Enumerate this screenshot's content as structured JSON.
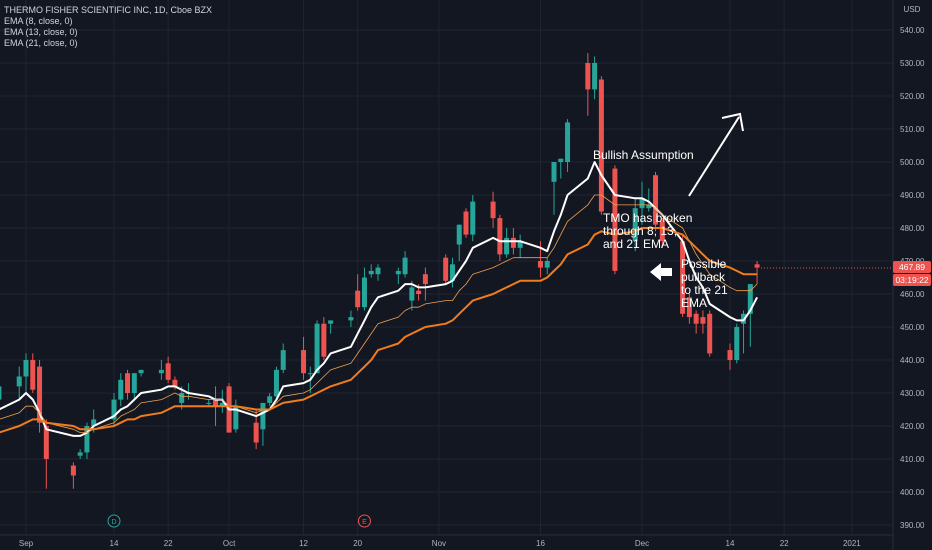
{
  "colors": {
    "background": "#131722",
    "grid": "#1f2433",
    "up_candle": "#26a69a",
    "down_candle": "#ef5350",
    "ema8": "#ffffff",
    "ema13": "#f5a04a",
    "ema21": "#f07c1d",
    "annotation": "#ffffff",
    "axis_text": "#b2b5be",
    "price_badge": "#ef5350"
  },
  "legend": {
    "title": "THERMO FISHER SCIENTIFIC INC, 1D, Cboe BZX",
    "ema8": "EMA (8, close, 0)",
    "ema13": "EMA (13, close, 0)",
    "ema21": "EMA (21, close, 0)"
  },
  "axis": {
    "currency": "USD",
    "last_price": "467.89",
    "countdown": "03:19:22",
    "event_markers": [
      {
        "letter": "D",
        "color": "#26a69a",
        "date": "2020-09-14"
      },
      {
        "letter": "E",
        "color": "#ef5350",
        "date": "2020-10-21"
      }
    ]
  },
  "annotations": {
    "bullish": "Bullish Assumption",
    "broken_1": "TMO has broken",
    "broken_2": "through 8, 13,",
    "broken_3": "and 21 EMA",
    "pullback_1": "Possible",
    "pullback_2": "pullback",
    "pullback_3": "to the 21",
    "pullback_4": "EMA"
  },
  "chart_data": {
    "type": "candlestick",
    "title": "THERMO FISHER SCIENTIFIC INC, 1D, Cboe BZX",
    "ylim": [
      388,
      545
    ],
    "y_ticks": [
      390,
      400,
      410,
      420,
      430,
      440,
      450,
      460,
      470,
      480,
      490,
      500,
      510,
      520,
      530,
      540
    ],
    "x_tick_labels": [
      "Sep",
      "14",
      "22",
      "Oct",
      "12",
      "20",
      "Nov",
      "16",
      "Dec",
      "14",
      "22",
      "2021"
    ],
    "grid": true,
    "candles": [
      {
        "date": "2020-08-27",
        "o": 425,
        "h": 430,
        "l": 418,
        "c": 428
      },
      {
        "date": "2020-08-28",
        "o": 428,
        "h": 435,
        "l": 424,
        "c": 432
      },
      {
        "date": "2020-08-31",
        "o": 432,
        "h": 438,
        "l": 428,
        "c": 435
      },
      {
        "date": "2020-09-01",
        "o": 435,
        "h": 442,
        "l": 430,
        "c": 440
      },
      {
        "date": "2020-09-02",
        "o": 440,
        "h": 442,
        "l": 430,
        "c": 431
      },
      {
        "date": "2020-09-03",
        "o": 438,
        "h": 440,
        "l": 418,
        "c": 421
      },
      {
        "date": "2020-09-04",
        "o": 420,
        "h": 422,
        "l": 401,
        "c": 410
      },
      {
        "date": "2020-09-08",
        "o": 408,
        "h": 409,
        "l": 401,
        "c": 405
      },
      {
        "date": "2020-09-09",
        "o": 411,
        "h": 413,
        "l": 410,
        "c": 412
      },
      {
        "date": "2020-09-10",
        "o": 412,
        "h": 421,
        "l": 410,
        "c": 420
      },
      {
        "date": "2020-09-11",
        "o": 420,
        "h": 425,
        "l": 418,
        "c": 422
      },
      {
        "date": "2020-09-14",
        "o": 422,
        "h": 430,
        "l": 420,
        "c": 428
      },
      {
        "date": "2020-09-15",
        "o": 428,
        "h": 436,
        "l": 426,
        "c": 434
      },
      {
        "date": "2020-09-16",
        "o": 436,
        "h": 437,
        "l": 428,
        "c": 430
      },
      {
        "date": "2020-09-17",
        "o": 430,
        "h": 436,
        "l": 428,
        "c": 436
      },
      {
        "date": "2020-09-18",
        "o": 436,
        "h": 437,
        "l": 435,
        "c": 437
      },
      {
        "date": "2020-09-21",
        "o": 436,
        "h": 440,
        "l": 434,
        "c": 437
      },
      {
        "date": "2020-09-22",
        "o": 439,
        "h": 441,
        "l": 433,
        "c": 434
      },
      {
        "date": "2020-09-23",
        "o": 434,
        "h": 435,
        "l": 431,
        "c": 432
      },
      {
        "date": "2020-09-24",
        "o": 427,
        "h": 432,
        "l": 425,
        "c": 430
      },
      {
        "date": "2020-09-25",
        "o": 430,
        "h": 433,
        "l": 428,
        "c": 430
      },
      {
        "date": "2020-09-28",
        "o": 427,
        "h": 428,
        "l": 426,
        "c": 427
      },
      {
        "date": "2020-09-29",
        "o": 428,
        "h": 432,
        "l": 420,
        "c": 426
      },
      {
        "date": "2020-09-30",
        "o": 426,
        "h": 431,
        "l": 424,
        "c": 427
      },
      {
        "date": "2020-10-01",
        "o": 432,
        "h": 433,
        "l": 418,
        "c": 418
      },
      {
        "date": "2020-10-02",
        "o": 419,
        "h": 428,
        "l": 418,
        "c": 426
      },
      {
        "date": "2020-10-05",
        "o": 421,
        "h": 425,
        "l": 413,
        "c": 415
      },
      {
        "date": "2020-10-06",
        "o": 419,
        "h": 427,
        "l": 414,
        "c": 427
      },
      {
        "date": "2020-10-07",
        "o": 427,
        "h": 430,
        "l": 426,
        "c": 429
      },
      {
        "date": "2020-10-08",
        "o": 429,
        "h": 438,
        "l": 428,
        "c": 437
      },
      {
        "date": "2020-10-09",
        "o": 437,
        "h": 445,
        "l": 436,
        "c": 443
      },
      {
        "date": "2020-10-12",
        "o": 443,
        "h": 447,
        "l": 434,
        "c": 436
      },
      {
        "date": "2020-10-13",
        "o": 436,
        "h": 438,
        "l": 430,
        "c": 436
      },
      {
        "date": "2020-10-14",
        "o": 436,
        "h": 452,
        "l": 436,
        "c": 451
      },
      {
        "date": "2020-10-15",
        "o": 451,
        "h": 453,
        "l": 440,
        "c": 441
      },
      {
        "date": "2020-10-16",
        "o": 451,
        "h": 452,
        "l": 448,
        "c": 452
      },
      {
        "date": "2020-10-19",
        "o": 452,
        "h": 455,
        "l": 450,
        "c": 453
      },
      {
        "date": "2020-10-20",
        "o": 461,
        "h": 466,
        "l": 455,
        "c": 456
      },
      {
        "date": "2020-10-21",
        "o": 456,
        "h": 468,
        "l": 455,
        "c": 465
      },
      {
        "date": "2020-10-22",
        "o": 466,
        "h": 469,
        "l": 465,
        "c": 467
      },
      {
        "date": "2020-10-23",
        "o": 466,
        "h": 469,
        "l": 464,
        "c": 468
      },
      {
        "date": "2020-10-26",
        "o": 466,
        "h": 468,
        "l": 463,
        "c": 467
      },
      {
        "date": "2020-10-27",
        "o": 466,
        "h": 473,
        "l": 465,
        "c": 471
      },
      {
        "date": "2020-10-28",
        "o": 458,
        "h": 464,
        "l": 455,
        "c": 462
      },
      {
        "date": "2020-10-29",
        "o": 461,
        "h": 463,
        "l": 458,
        "c": 460
      },
      {
        "date": "2020-10-30",
        "o": 466,
        "h": 468,
        "l": 458,
        "c": 463
      },
      {
        "date": "2020-11-02",
        "o": 471,
        "h": 472,
        "l": 463,
        "c": 464
      },
      {
        "date": "2020-11-03",
        "o": 464,
        "h": 471,
        "l": 462,
        "c": 469
      },
      {
        "date": "2020-11-04",
        "o": 475,
        "h": 481,
        "l": 470,
        "c": 481
      },
      {
        "date": "2020-11-05",
        "o": 485,
        "h": 486,
        "l": 477,
        "c": 478
      },
      {
        "date": "2020-11-06",
        "o": 478,
        "h": 490,
        "l": 476,
        "c": 488
      },
      {
        "date": "2020-11-09",
        "o": 488,
        "h": 491,
        "l": 480,
        "c": 483
      },
      {
        "date": "2020-11-10",
        "o": 483,
        "h": 484,
        "l": 470,
        "c": 472
      },
      {
        "date": "2020-11-11",
        "o": 472,
        "h": 480,
        "l": 471,
        "c": 477
      },
      {
        "date": "2020-11-12",
        "o": 477,
        "h": 480,
        "l": 472,
        "c": 474
      },
      {
        "date": "2020-11-13",
        "o": 474,
        "h": 478,
        "l": 471,
        "c": 476
      },
      {
        "date": "2020-11-16",
        "o": 470,
        "h": 476,
        "l": 465,
        "c": 468
      },
      {
        "date": "2020-11-17",
        "o": 468,
        "h": 471,
        "l": 466,
        "c": 470
      },
      {
        "date": "2020-11-18",
        "o": 494,
        "h": 500,
        "l": 484,
        "c": 500
      },
      {
        "date": "2020-11-19",
        "o": 500,
        "h": 501,
        "l": 495,
        "c": 501
      },
      {
        "date": "2020-11-20",
        "o": 500,
        "h": 513,
        "l": 497,
        "c": 512
      },
      {
        "date": "2020-11-23",
        "o": 530,
        "h": 533,
        "l": 514,
        "c": 522
      },
      {
        "date": "2020-11-24",
        "o": 522,
        "h": 532,
        "l": 519,
        "c": 530
      },
      {
        "date": "2020-11-25",
        "o": 525,
        "h": 526,
        "l": 484,
        "c": 485
      },
      {
        "date": "2020-11-27",
        "o": 498,
        "h": 499,
        "l": 466,
        "c": 467
      },
      {
        "date": "2020-11-30",
        "o": 476,
        "h": 489,
        "l": 473,
        "c": 486
      },
      {
        "date": "2020-12-01",
        "o": 486,
        "h": 494,
        "l": 481,
        "c": 489
      },
      {
        "date": "2020-12-02",
        "o": 486,
        "h": 492,
        "l": 485,
        "c": 487
      },
      {
        "date": "2020-12-03",
        "o": 496,
        "h": 497,
        "l": 479,
        "c": 481
      },
      {
        "date": "2020-12-04",
        "o": 482,
        "h": 483,
        "l": 474,
        "c": 476
      },
      {
        "date": "2020-12-07",
        "o": 476,
        "h": 478,
        "l": 453,
        "c": 454
      },
      {
        "date": "2020-12-08",
        "o": 459,
        "h": 460,
        "l": 451,
        "c": 453
      },
      {
        "date": "2020-12-09",
        "o": 454,
        "h": 455,
        "l": 448,
        "c": 451
      },
      {
        "date": "2020-12-10",
        "o": 453,
        "h": 455,
        "l": 448,
        "c": 451
      },
      {
        "date": "2020-12-11",
        "o": 454,
        "h": 455,
        "l": 441,
        "c": 442
      },
      {
        "date": "2020-12-14",
        "o": 443,
        "h": 445,
        "l": 437,
        "c": 440
      },
      {
        "date": "2020-12-15",
        "o": 440,
        "h": 451,
        "l": 439,
        "c": 450
      },
      {
        "date": "2020-12-16",
        "o": 451,
        "h": 455,
        "l": 442,
        "c": 454
      },
      {
        "date": "2020-12-17",
        "o": 454,
        "h": 463,
        "l": 444,
        "c": 463
      },
      {
        "date": "2020-12-18",
        "o": 469,
        "h": 470,
        "l": 463,
        "c": 468
      }
    ],
    "series": [
      {
        "name": "EMA (8, close, 0)",
        "values": [
          421,
          425,
          428,
          430,
          428,
          424,
          419,
          417,
          417,
          418,
          420,
          423,
          425,
          426,
          428,
          430,
          431,
          432,
          432,
          431,
          430,
          429,
          428,
          428,
          425,
          425,
          423,
          424,
          425,
          428,
          432,
          433,
          434,
          437,
          439,
          442,
          444,
          448,
          452,
          456,
          459,
          461,
          463,
          463,
          462,
          462,
          463,
          464,
          467,
          470,
          474,
          477,
          476,
          476,
          476,
          476,
          474,
          473,
          479,
          484,
          490,
          495,
          500,
          496,
          490,
          489,
          489,
          488,
          486,
          484,
          476,
          470,
          465,
          462,
          457,
          453,
          452,
          452,
          455,
          459
        ]
      },
      {
        "name": "EMA (13, close, 0)",
        "values": [
          419,
          422,
          424,
          426,
          426,
          424,
          421,
          419,
          418,
          418,
          419,
          421,
          423,
          424,
          425,
          427,
          428,
          429,
          430,
          429,
          429,
          428,
          428,
          428,
          426,
          426,
          424,
          425,
          425,
          427,
          429,
          430,
          431,
          433,
          435,
          437,
          439,
          442,
          445,
          448,
          451,
          453,
          455,
          456,
          456,
          457,
          458,
          458,
          461,
          463,
          466,
          468,
          469,
          470,
          471,
          471,
          471,
          471,
          474,
          478,
          482,
          487,
          490,
          490,
          487,
          487,
          487,
          487,
          486,
          484,
          480,
          476,
          472,
          469,
          466,
          462,
          461,
          461,
          461,
          463
        ]
      },
      {
        "name": "EMA (21, close, 0)",
        "values": [
          417,
          418,
          420,
          421,
          422,
          422,
          421,
          420,
          419,
          419,
          419,
          420,
          421,
          422,
          422,
          423,
          424,
          425,
          426,
          426,
          426,
          426,
          426,
          426,
          426,
          426,
          425,
          425,
          425,
          426,
          427,
          428,
          429,
          430,
          431,
          432,
          434,
          436,
          438,
          440,
          443,
          445,
          447,
          448,
          449,
          450,
          451,
          452,
          454,
          456,
          458,
          460,
          461,
          462,
          463,
          464,
          464,
          465,
          467,
          469,
          472,
          475,
          478,
          479,
          478,
          479,
          480,
          480,
          480,
          480,
          478,
          476,
          474,
          472,
          470,
          468,
          467,
          466,
          466,
          466
        ]
      }
    ]
  }
}
